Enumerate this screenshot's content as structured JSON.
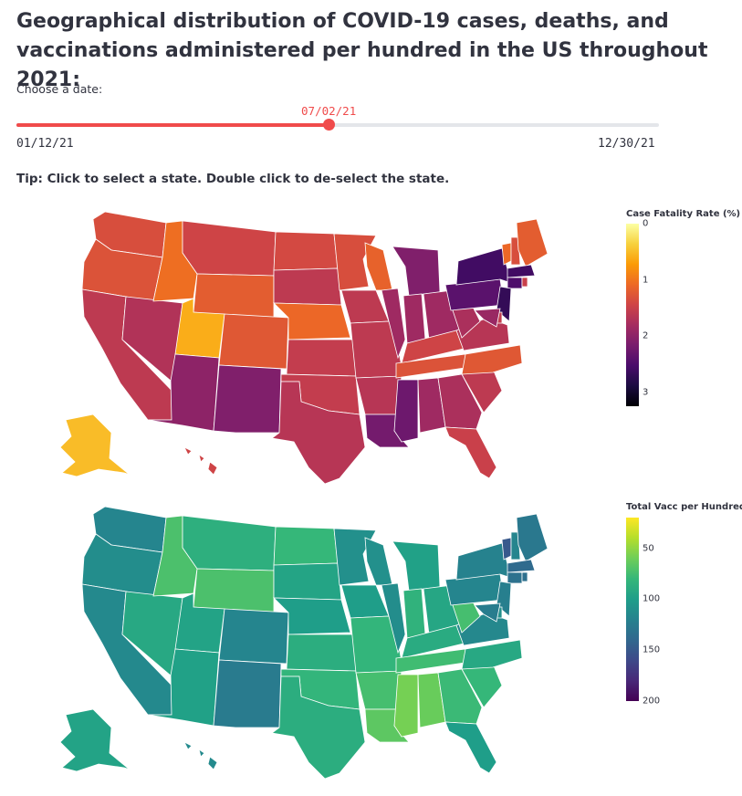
{
  "title": "Geographical distribution of COVID-19 cases, deaths, and vaccinations administered per hundred in the US throughout 2021:",
  "slider": {
    "label": "Choose a date:",
    "min_label": "01/12/21",
    "max_label": "12/30/21",
    "value_label": "07/02/21",
    "position_fraction": 0.486,
    "accent_color": "#f04b4b"
  },
  "tip": "Tip: Click to select a state. Double click to de-select the state.",
  "maps": [
    {
      "name": "case-fatality-map",
      "colorbar": {
        "title": "Case Fatality Rate (%)",
        "ticks": [
          "0",
          "1",
          "2",
          "3"
        ],
        "tick_values": [
          0,
          1,
          2,
          3
        ],
        "range": [
          0,
          3.25
        ],
        "colorscale": "inferno",
        "reversed": true
      },
      "states": [
        {
          "code": "WA",
          "v": 1.35
        },
        {
          "code": "OR",
          "v": 1.3
        },
        {
          "code": "CA",
          "v": 1.6
        },
        {
          "code": "NV",
          "v": 1.7
        },
        {
          "code": "ID",
          "v": 1.05
        },
        {
          "code": "MT",
          "v": 1.45
        },
        {
          "code": "WY",
          "v": 1.2
        },
        {
          "code": "UT",
          "v": 0.6
        },
        {
          "code": "CO",
          "v": 1.25
        },
        {
          "code": "AZ",
          "v": 2.0
        },
        {
          "code": "NM",
          "v": 2.1
        },
        {
          "code": "ND",
          "v": 1.4
        },
        {
          "code": "SD",
          "v": 1.6
        },
        {
          "code": "NE",
          "v": 1.1
        },
        {
          "code": "KS",
          "v": 1.55
        },
        {
          "code": "OK",
          "v": 1.55
        },
        {
          "code": "TX",
          "v": 1.65
        },
        {
          "code": "MN",
          "v": 1.35
        },
        {
          "code": "IA",
          "v": 1.6
        },
        {
          "code": "MO",
          "v": 1.6
        },
        {
          "code": "AR",
          "v": 1.65
        },
        {
          "code": "LA",
          "v": 2.2
        },
        {
          "code": "WI",
          "v": 1.15
        },
        {
          "code": "IL",
          "v": 1.85
        },
        {
          "code": "MI",
          "v": 2.1
        },
        {
          "code": "IN",
          "v": 1.85
        },
        {
          "code": "OH",
          "v": 1.85
        },
        {
          "code": "KY",
          "v": 1.45
        },
        {
          "code": "TN",
          "v": 1.3
        },
        {
          "code": "MS",
          "v": 2.25
        },
        {
          "code": "AL",
          "v": 1.85
        },
        {
          "code": "GA",
          "v": 1.75
        },
        {
          "code": "FL",
          "v": 1.5
        },
        {
          "code": "SC",
          "v": 1.6
        },
        {
          "code": "NC",
          "v": 1.25
        },
        {
          "code": "VA",
          "v": 1.65
        },
        {
          "code": "WV",
          "v": 1.75
        },
        {
          "code": "PA",
          "v": 2.4
        },
        {
          "code": "NY",
          "v": 2.6
        },
        {
          "code": "VT",
          "v": 1.1
        },
        {
          "code": "NH",
          "v": 1.35
        },
        {
          "code": "ME",
          "v": 1.2
        },
        {
          "code": "MA",
          "v": 2.6
        },
        {
          "code": "CT",
          "v": 2.5
        },
        {
          "code": "RI",
          "v": 1.5
        },
        {
          "code": "NJ",
          "v": 2.7
        },
        {
          "code": "DE",
          "v": 1.55
        },
        {
          "code": "MD",
          "v": 1.9
        },
        {
          "code": "AK",
          "v": 0.5
        },
        {
          "code": "HI",
          "v": 1.45
        }
      ]
    },
    {
      "name": "vaccination-map",
      "colorbar": {
        "title": "Total Vacc per Hundred",
        "ticks": [
          "50",
          "100",
          "150",
          "200"
        ],
        "tick_values": [
          50,
          100,
          150,
          200
        ],
        "range": [
          20,
          200
        ],
        "colorscale": "viridis",
        "reversed": true
      },
      "states": [
        {
          "code": "WA",
          "v": 118
        },
        {
          "code": "OR",
          "v": 112
        },
        {
          "code": "CA",
          "v": 115
        },
        {
          "code": "NV",
          "v": 92
        },
        {
          "code": "ID",
          "v": 72
        },
        {
          "code": "MT",
          "v": 86
        },
        {
          "code": "WY",
          "v": 72
        },
        {
          "code": "UT",
          "v": 96
        },
        {
          "code": "CO",
          "v": 118
        },
        {
          "code": "AZ",
          "v": 98
        },
        {
          "code": "NM",
          "v": 125
        },
        {
          "code": "ND",
          "v": 80
        },
        {
          "code": "SD",
          "v": 95
        },
        {
          "code": "NE",
          "v": 100
        },
        {
          "code": "KS",
          "v": 88
        },
        {
          "code": "OK",
          "v": 82
        },
        {
          "code": "TX",
          "v": 88
        },
        {
          "code": "MN",
          "v": 110
        },
        {
          "code": "IA",
          "v": 100
        },
        {
          "code": "MO",
          "v": 82
        },
        {
          "code": "AR",
          "v": 74
        },
        {
          "code": "LA",
          "v": 66
        },
        {
          "code": "WI",
          "v": 110
        },
        {
          "code": "IL",
          "v": 112
        },
        {
          "code": "MI",
          "v": 98
        },
        {
          "code": "IN",
          "v": 84
        },
        {
          "code": "OH",
          "v": 94
        },
        {
          "code": "KY",
          "v": 90
        },
        {
          "code": "TN",
          "v": 76
        },
        {
          "code": "MS",
          "v": 58
        },
        {
          "code": "AL",
          "v": 62
        },
        {
          "code": "GA",
          "v": 78
        },
        {
          "code": "FL",
          "v": 100
        },
        {
          "code": "SC",
          "v": 80
        },
        {
          "code": "NC",
          "v": 92
        },
        {
          "code": "VA",
          "v": 116
        },
        {
          "code": "WV",
          "v": 74
        },
        {
          "code": "PA",
          "v": 118
        },
        {
          "code": "NY",
          "v": 120
        },
        {
          "code": "VT",
          "v": 150
        },
        {
          "code": "NH",
          "v": 118
        },
        {
          "code": "ME",
          "v": 128
        },
        {
          "code": "MA",
          "v": 138
        },
        {
          "code": "CT",
          "v": 132
        },
        {
          "code": "RI",
          "v": 134
        },
        {
          "code": "NJ",
          "v": 122
        },
        {
          "code": "DE",
          "v": 110
        },
        {
          "code": "MD",
          "v": 124
        },
        {
          "code": "AK",
          "v": 96
        },
        {
          "code": "HI",
          "v": 114
        }
      ]
    }
  ]
}
